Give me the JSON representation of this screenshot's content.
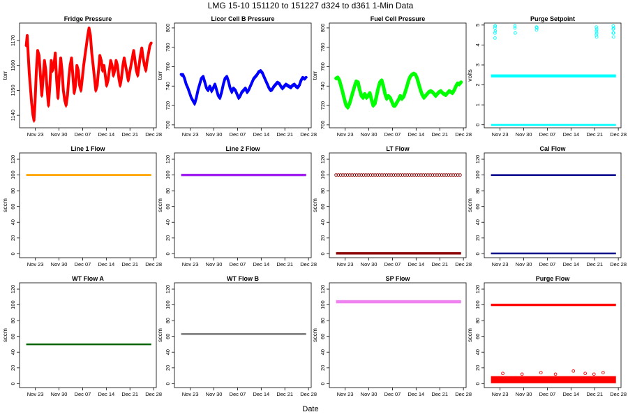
{
  "figure": {
    "title": "LMG   15-10    151120 to 151227    d324 to d361   1-Min Data",
    "xlabel": "Date"
  },
  "chart_data": [
    {
      "type": "line",
      "title": "Fridge Pressure",
      "ylabel": "torr",
      "color": "#ff0000",
      "ylim": [
        1135,
        1177
      ],
      "yticks": [
        1140,
        1150,
        1160,
        1170
      ],
      "xticks": [
        "Nov 23",
        "Nov 30",
        "Dec 07",
        "Dec 14",
        "Dec 21",
        "Dec 28"
      ],
      "series": [
        {
          "band": 4,
          "x": [
            0,
            0.3,
            0.6,
            0.9,
            1.3,
            1.6,
            2.0,
            2.3,
            2.6,
            3.0,
            3.4,
            3.8,
            4.2,
            4.6,
            5.0,
            5.4,
            5.8,
            6.2,
            6.6,
            7.0,
            7.4,
            7.8,
            8.2,
            8.6,
            9.0,
            9.4,
            9.8,
            10.2,
            10.6,
            11.0,
            11.4,
            11.8,
            12.2,
            12.6,
            13.0,
            13.4,
            13.8,
            14.2,
            14.6,
            15.0,
            15.4,
            15.8,
            16.2,
            16.6,
            17.0,
            17.4,
            17.8,
            18.2,
            18.6,
            19.0,
            19.4,
            19.8,
            20.2,
            20.6,
            21.0,
            21.4,
            21.8,
            22.2,
            22.6,
            23.0,
            23.4,
            23.8,
            24.2,
            24.6,
            25.0,
            25.4,
            25.8,
            26.2,
            26.6,
            27.0,
            27.4,
            27.8,
            28.2,
            28.6,
            29.0,
            29.4,
            29.8,
            30.2,
            30.6,
            31.0,
            31.4,
            31.8,
            32.2,
            32.6,
            33.0,
            33.4,
            33.8,
            34.2,
            34.6,
            35.0,
            35.4,
            35.8,
            36.2,
            36.6,
            37.0
          ],
          "y": [
            1168,
            1172,
            1164,
            1157,
            1150,
            1145,
            1140,
            1138,
            1145,
            1158,
            1166,
            1164,
            1156,
            1148,
            1155,
            1162,
            1158,
            1150,
            1144,
            1152,
            1162,
            1158,
            1160,
            1165,
            1154,
            1147,
            1156,
            1163,
            1158,
            1150,
            1146,
            1144,
            1148,
            1155,
            1160,
            1163,
            1156,
            1149,
            1152,
            1160,
            1158,
            1152,
            1150,
            1155,
            1160,
            1164,
            1168,
            1172,
            1175,
            1172,
            1165,
            1160,
            1155,
            1150,
            1152,
            1158,
            1164,
            1162,
            1158,
            1160,
            1156,
            1152,
            1154,
            1158,
            1162,
            1160,
            1156,
            1158,
            1162,
            1160,
            1155,
            1152,
            1155,
            1160,
            1163,
            1160,
            1157,
            1154,
            1157,
            1160,
            1163,
            1166,
            1162,
            1158,
            1156,
            1160,
            1164,
            1167,
            1163,
            1160,
            1158,
            1162,
            1165,
            1168,
            1169
          ]
        }
      ]
    },
    {
      "type": "line",
      "title": "Licor Cell B Pressure",
      "ylabel": "torr",
      "color": "#0000ff",
      "ylim": [
        697,
        805
      ],
      "yticks": [
        700,
        720,
        740,
        760,
        780,
        800
      ],
      "xticks": [
        "Nov 23",
        "Nov 30",
        "Dec 07",
        "Dec 14",
        "Dec 21",
        "Dec 28"
      ],
      "series": [
        {
          "band": 4,
          "x": [
            0,
            0.5,
            1,
            1.5,
            2,
            2.5,
            3,
            3.5,
            4,
            4.5,
            5,
            5.5,
            6,
            6.5,
            7,
            7.5,
            8,
            8.5,
            9,
            9.5,
            10,
            10.5,
            11,
            11.5,
            12,
            12.5,
            13,
            13.5,
            14,
            14.5,
            15,
            15.5,
            16,
            16.5,
            17,
            17.5,
            18,
            18.5,
            19,
            19.5,
            20,
            20.5,
            21,
            21.5,
            22,
            22.5,
            23,
            23.5,
            24,
            24.5,
            25,
            25.5,
            26,
            26.5,
            27,
            27.5,
            28,
            28.5,
            29,
            29.5,
            30,
            30.5,
            31,
            31.5,
            32,
            32.5,
            33,
            33.5,
            34,
            34.5,
            35,
            35.5,
            36,
            36.5,
            37
          ],
          "y": [
            752,
            752,
            748,
            742,
            738,
            733,
            728,
            725,
            722,
            728,
            736,
            742,
            748,
            750,
            744,
            738,
            736,
            740,
            735,
            738,
            742,
            736,
            730,
            728,
            734,
            742,
            748,
            750,
            745,
            738,
            734,
            738,
            736,
            732,
            728,
            730,
            734,
            736,
            738,
            734,
            736,
            740,
            744,
            748,
            750,
            752,
            755,
            756,
            754,
            750,
            746,
            742,
            738,
            736,
            737,
            740,
            742,
            744,
            743,
            740,
            738,
            740,
            742,
            741,
            740,
            739,
            741,
            742,
            740,
            739,
            741,
            746,
            749,
            748,
            749
          ]
        }
      ]
    },
    {
      "type": "line",
      "title": "Fuel Cell Pressure",
      "ylabel": "torr",
      "color": "#00ff00",
      "ylim": [
        697,
        805
      ],
      "yticks": [
        700,
        720,
        740,
        760,
        780,
        800
      ],
      "xticks": [
        "Nov 23",
        "Nov 30",
        "Dec 07",
        "Dec 14",
        "Dec 21",
        "Dec 28"
      ],
      "series": [
        {
          "band": 5,
          "x": [
            0,
            0.5,
            1,
            1.5,
            2,
            2.5,
            3,
            3.5,
            4,
            4.5,
            5,
            5.5,
            6,
            6.5,
            7,
            7.5,
            8,
            8.5,
            9,
            9.5,
            10,
            10.5,
            11,
            11.5,
            12,
            12.5,
            13,
            13.5,
            14,
            14.5,
            15,
            15.5,
            16,
            16.5,
            17,
            17.5,
            18,
            18.5,
            19,
            19.5,
            20,
            20.5,
            21,
            21.5,
            22,
            22.5,
            23,
            23.5,
            24,
            24.5,
            25,
            25.5,
            26,
            26.5,
            27,
            27.5,
            28,
            28.5,
            29,
            29.5,
            30,
            30.5,
            31,
            31.5,
            32,
            32.5,
            33,
            33.5,
            34,
            34.5,
            35,
            35.5,
            36,
            36.5,
            37
          ],
          "y": [
            748,
            749,
            746,
            740,
            733,
            726,
            720,
            718,
            722,
            728,
            734,
            740,
            745,
            744,
            736,
            730,
            728,
            732,
            728,
            730,
            733,
            726,
            720,
            722,
            730,
            738,
            744,
            746,
            740,
            732,
            727,
            730,
            728,
            724,
            720,
            720,
            723,
            726,
            730,
            727,
            729,
            734,
            740,
            746,
            750,
            752,
            753,
            752,
            748,
            742,
            736,
            731,
            728,
            730,
            732,
            734,
            735,
            734,
            732,
            730,
            732,
            734,
            735,
            733,
            732,
            731,
            733,
            735,
            734,
            733,
            736,
            740,
            743,
            742,
            744
          ]
        }
      ]
    },
    {
      "type": "scatter",
      "title": "Purge Setpoint",
      "ylabel": "volts",
      "color": "#00ffff",
      "ylim": [
        -0.15,
        5.1
      ],
      "yticks": [
        0,
        1,
        2,
        3,
        4,
        5
      ],
      "xticks": [
        "Nov 23",
        "Nov 30",
        "Dec 07",
        "Dec 14",
        "Dec 21",
        "Dec 28"
      ],
      "bands": [
        {
          "y": 2.45,
          "h": 0.15
        },
        {
          "y": 0.0,
          "h": 0.08
        }
      ],
      "points": {
        "x": [
          1.2,
          1.2,
          1.2,
          1.2,
          1.3,
          1.3,
          7.1,
          7.1,
          7.2,
          13.5,
          13.5,
          13.6,
          31.2,
          31.2,
          31.2,
          31.3,
          31.3,
          31.3,
          36.2,
          36.2,
          36.2,
          36.3,
          36.3,
          36.3
        ],
        "y": [
          4.95,
          4.85,
          4.6,
          4.35,
          4.95,
          4.7,
          4.95,
          4.85,
          4.6,
          4.9,
          4.75,
          4.85,
          4.9,
          4.7,
          4.5,
          4.8,
          4.6,
          4.4,
          4.95,
          4.8,
          4.6,
          4.85,
          4.6,
          4.4
        ]
      }
    },
    {
      "type": "line",
      "title": "Line 1 Flow",
      "ylabel": "sccm",
      "color": "#ffa500",
      "ylim": [
        -5,
        128
      ],
      "yticks": [
        0,
        20,
        40,
        60,
        80,
        100,
        120
      ],
      "xticks": [
        "Nov 23",
        "Nov 30",
        "Dec 07",
        "Dec 14",
        "Dec 21",
        "Dec 28"
      ],
      "bands": [
        {
          "y": 100,
          "h": 2.5
        }
      ]
    },
    {
      "type": "line",
      "title": "Line 2 Flow",
      "ylabel": "sccm",
      "color": "#a020f0",
      "ylim": [
        -5,
        128
      ],
      "yticks": [
        0,
        20,
        40,
        60,
        80,
        100,
        120
      ],
      "xticks": [
        "Nov 23",
        "Nov 30",
        "Dec 07",
        "Dec 14",
        "Dec 21",
        "Dec 28"
      ],
      "bands": [
        {
          "y": 100,
          "h": 3
        }
      ]
    },
    {
      "type": "scatter",
      "title": "LT Flow",
      "ylabel": "sccm",
      "color": "#8b0000",
      "ylim": [
        -5,
        128
      ],
      "yticks": [
        0,
        20,
        40,
        60,
        80,
        100,
        120
      ],
      "xticks": [
        "Nov 23",
        "Nov 30",
        "Dec 07",
        "Dec 14",
        "Dec 21",
        "Dec 28"
      ],
      "bands": [
        {
          "y": 0.5,
          "h": 3
        }
      ],
      "ring_row": {
        "y": 100,
        "step": 0.68
      }
    },
    {
      "type": "scatter",
      "title": "Cal Flow",
      "ylabel": "sccm",
      "color": "#00008b",
      "ylim": [
        -5,
        128
      ],
      "yticks": [
        0,
        20,
        40,
        60,
        80,
        100,
        120
      ],
      "xticks": [
        "Nov 23",
        "Nov 30",
        "Dec 07",
        "Dec 14",
        "Dec 21",
        "Dec 28"
      ],
      "bands": [
        {
          "y": 100,
          "h": 2
        },
        {
          "y": 0.5,
          "h": 2
        }
      ]
    },
    {
      "type": "line",
      "title": "WT Flow A",
      "ylabel": "sccm",
      "color": "#006400",
      "ylim": [
        -5,
        128
      ],
      "yticks": [
        0,
        20,
        40,
        60,
        80,
        100,
        120
      ],
      "xticks": [
        "Nov 23",
        "Nov 30",
        "Dec 07",
        "Dec 14",
        "Dec 21",
        "Dec 28"
      ],
      "bands": [
        {
          "y": 50,
          "h": 2
        }
      ]
    },
    {
      "type": "line",
      "title": "WT Flow B",
      "ylabel": "sccm",
      "color": "#808080",
      "ylim": [
        -5,
        128
      ],
      "yticks": [
        0,
        20,
        40,
        60,
        80,
        100,
        120
      ],
      "xticks": [
        "Nov 23",
        "Nov 30",
        "Dec 07",
        "Dec 14",
        "Dec 21",
        "Dec 28"
      ],
      "bands": [
        {
          "y": 63,
          "h": 2.5
        }
      ]
    },
    {
      "type": "line",
      "title": "SP Flow",
      "ylabel": "sccm",
      "color": "#ee82ee",
      "ylim": [
        -5,
        128
      ],
      "yticks": [
        0,
        20,
        40,
        60,
        80,
        100,
        120
      ],
      "xticks": [
        "Nov 23",
        "Nov 30",
        "Dec 07",
        "Dec 14",
        "Dec 21",
        "Dec 28"
      ],
      "bands": [
        {
          "y": 104,
          "h": 4
        }
      ]
    },
    {
      "type": "scatter",
      "title": "Purge Flow",
      "ylabel": "sccm",
      "color": "#ff0000",
      "ylim": [
        -5,
        128
      ],
      "yticks": [
        0,
        20,
        40,
        60,
        80,
        100,
        120
      ],
      "xticks": [
        "Nov 23",
        "Nov 30",
        "Dec 07",
        "Dec 14",
        "Dec 21",
        "Dec 28"
      ],
      "bands": [
        {
          "y": 100,
          "h": 3
        },
        {
          "y": 5,
          "h": 9
        }
      ],
      "points": {
        "x": [
          3.5,
          9.2,
          14.8,
          19.1,
          24.4,
          27.9,
          30.5,
          33.2
        ],
        "y": [
          13,
          12,
          14,
          12,
          16,
          13,
          12,
          14
        ]
      }
    }
  ]
}
